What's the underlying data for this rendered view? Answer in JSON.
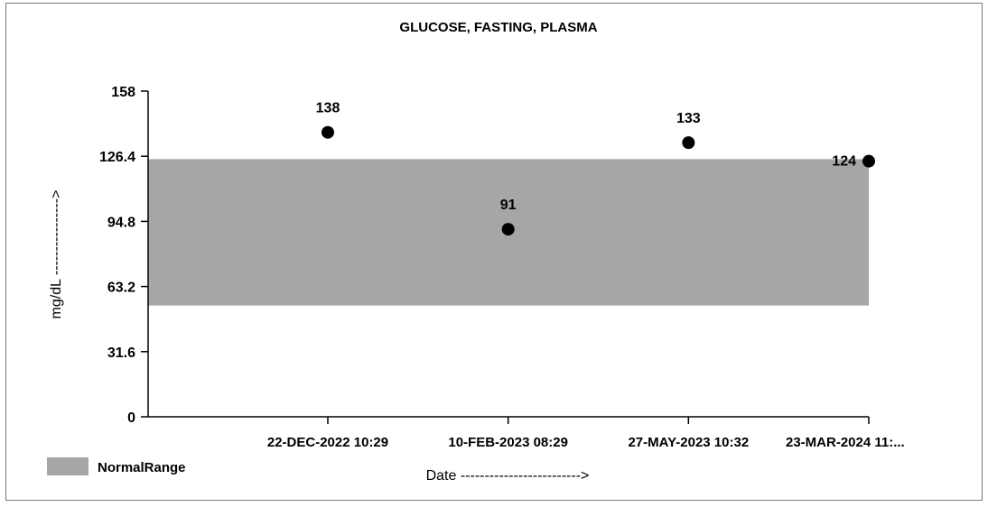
{
  "chart_data": {
    "type": "scatter",
    "title": "GLUCOSE, FASTING, PLASMA",
    "xlabel": "Date ------------------------->",
    "ylabel": "mg/dL ---------------->",
    "ylim": [
      0,
      158
    ],
    "yticks": [
      "0",
      "31.6",
      "63.2",
      "94.8",
      "126.4",
      "158"
    ],
    "categories": [
      "22-DEC-2022 10:29",
      "10-FEB-2023 08:29",
      "27-MAY-2023 10:32",
      "23-MAR-2024 11:..."
    ],
    "values": [
      138,
      91,
      133,
      124
    ],
    "value_labels": [
      "138",
      "91",
      "133",
      "124"
    ],
    "normal_range": {
      "low": 54,
      "high": 125
    },
    "legend": {
      "label": "NormalRange",
      "position": "bottom-left"
    },
    "colors": {
      "band": "#a6a6a6",
      "point": "#000000"
    }
  }
}
